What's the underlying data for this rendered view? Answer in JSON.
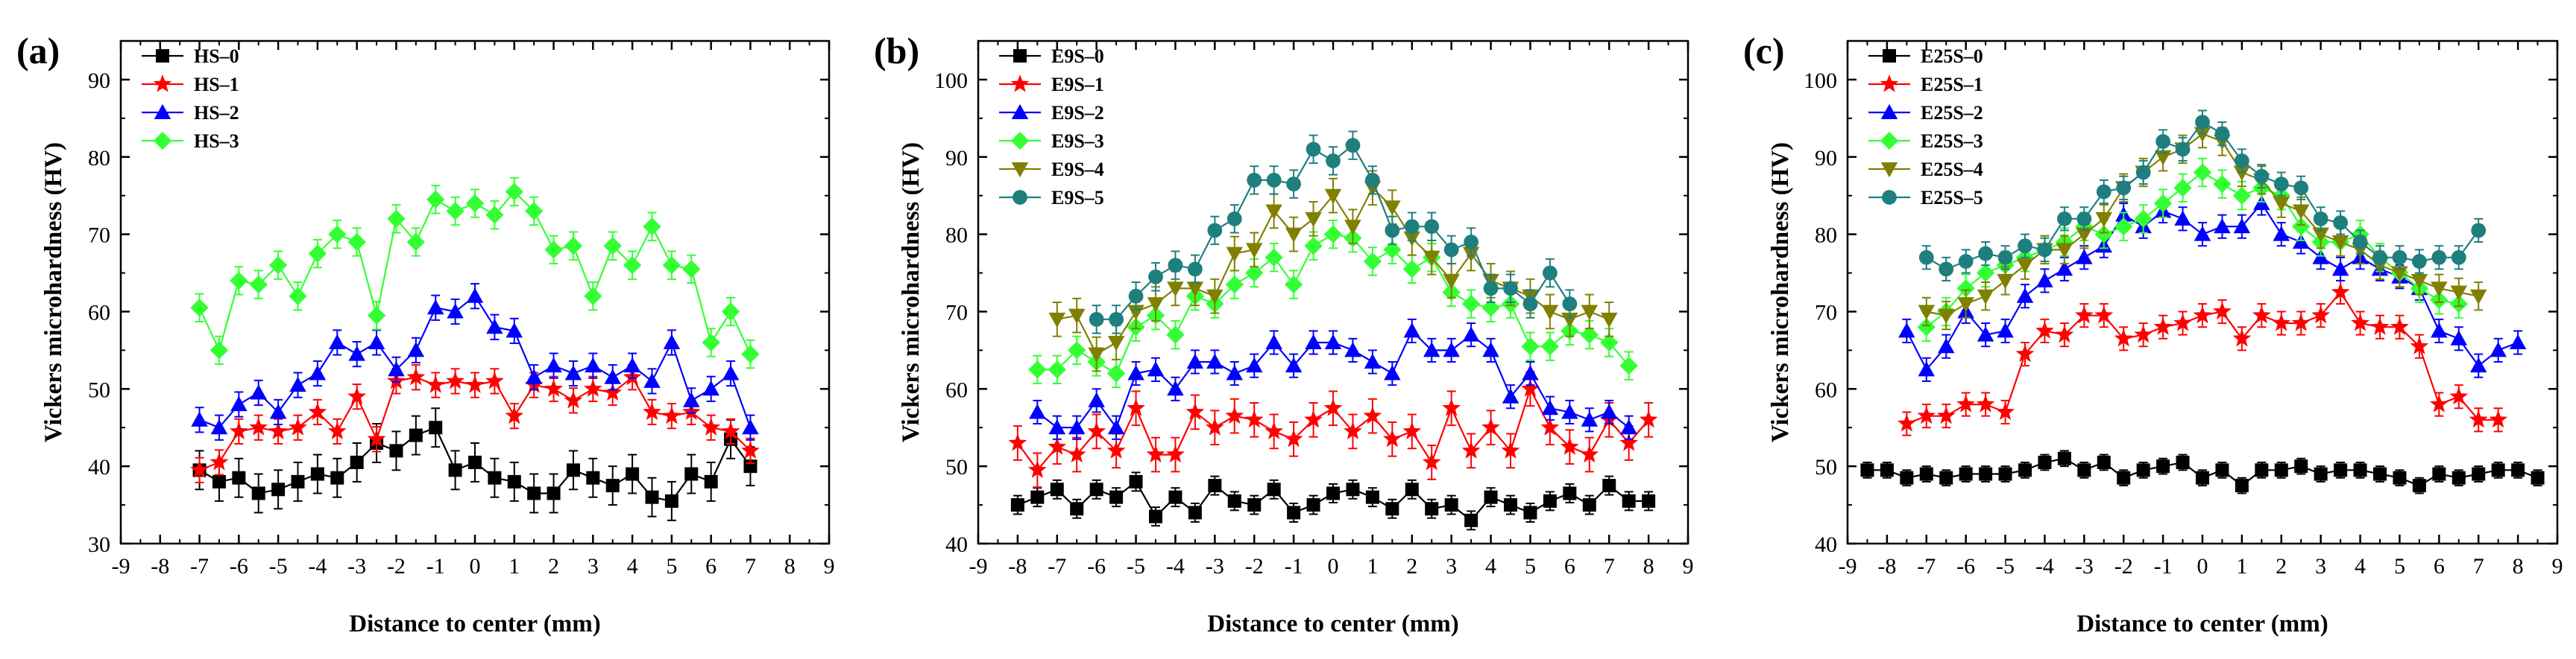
{
  "figure": {
    "panels": [
      "(a)",
      "(b)",
      "(c)"
    ],
    "colors": {
      "black": "#000000",
      "red": "#ff0000",
      "blue": "#0000ff",
      "green": "#33ff33",
      "olive": "#808000",
      "teal": "#1f7f7f"
    }
  },
  "chart_data": [
    {
      "type": "scatter",
      "panel": "(a)",
      "xlabel": "Distance to center (mm)",
      "ylabel": "Vickers microhardness (HV)",
      "xlim": [
        -9,
        9
      ],
      "ylim": [
        30,
        95
      ],
      "xticks": [
        -9,
        -8,
        -7,
        -6,
        -5,
        -4,
        -3,
        -2,
        -1,
        0,
        1,
        2,
        3,
        4,
        5,
        6,
        7,
        8,
        9
      ],
      "yticks": [
        30,
        40,
        50,
        60,
        70,
        80,
        90
      ],
      "legend_position": "top-left",
      "x": [
        -7,
        -6.5,
        -6,
        -5.5,
        -5,
        -4.5,
        -4,
        -3.5,
        -3,
        -2.5,
        -2,
        -1.5,
        -1,
        -0.5,
        0,
        0.5,
        1,
        1.5,
        2,
        2.5,
        3,
        3.5,
        4,
        4.5,
        5,
        5.5,
        6,
        6.5,
        7
      ],
      "series": [
        {
          "name": "HS–0",
          "color": "#000000",
          "marker": "square",
          "error": 2.5,
          "values": [
            39.5,
            38,
            38.5,
            36.5,
            37,
            38,
            39,
            38.5,
            40.5,
            43,
            42,
            44,
            45,
            39.5,
            40.5,
            38.5,
            38,
            36.5,
            36.5,
            39.5,
            38.5,
            37.5,
            39,
            36,
            35.5,
            39,
            38,
            43.5,
            40
          ]
        },
        {
          "name": "HS–1",
          "color": "#ff0000",
          "marker": "star",
          "error": 1.6,
          "values": [
            39.5,
            40.5,
            44.5,
            45,
            44.5,
            45,
            47,
            44.5,
            49,
            43.5,
            51,
            51.5,
            50.5,
            51,
            50.5,
            51,
            46.5,
            50.5,
            50,
            48.5,
            50,
            49.5,
            51.5,
            47,
            46.5,
            47,
            45,
            44.5,
            42
          ]
        },
        {
          "name": "HS–2",
          "color": "#0000ff",
          "marker": "triangle",
          "error": 1.6,
          "values": [
            46,
            45,
            48,
            49.5,
            47,
            50.5,
            52,
            56,
            54.5,
            56,
            52.5,
            55,
            60.5,
            60,
            62,
            58,
            57.5,
            51.5,
            53,
            52,
            53,
            51.5,
            53,
            51,
            56,
            48.5,
            50,
            52,
            45
          ]
        },
        {
          "name": "HS–3",
          "color": "#33ff33",
          "marker": "diamond",
          "error": 1.8,
          "values": [
            60.5,
            55,
            64,
            63.5,
            66,
            62,
            67.5,
            70,
            69,
            59.5,
            72,
            69,
            74.5,
            73,
            74,
            72.5,
            75.5,
            73,
            68,
            68.5,
            62,
            68.5,
            66,
            71,
            66,
            65.5,
            56,
            60,
            54.5
          ]
        }
      ]
    },
    {
      "type": "scatter",
      "panel": "(b)",
      "xlabel": "Distance to center (mm)",
      "ylabel": "Vickers microhardness (HV)",
      "xlim": [
        -9,
        9
      ],
      "ylim": [
        40,
        105
      ],
      "xticks": [
        -9,
        -8,
        -7,
        -6,
        -5,
        -4,
        -3,
        -2,
        -1,
        0,
        1,
        2,
        3,
        4,
        5,
        6,
        7,
        8,
        9
      ],
      "yticks": [
        40,
        50,
        60,
        70,
        80,
        90,
        100
      ],
      "legend_position": "top-left",
      "x": [
        -8,
        -7.5,
        -7,
        -6.5,
        -6,
        -5.5,
        -5,
        -4.5,
        -4,
        -3.5,
        -3,
        -2.5,
        -2,
        -1.5,
        -1,
        -0.5,
        0,
        0.5,
        1,
        1.5,
        2,
        2.5,
        3,
        3.5,
        4,
        4.5,
        5,
        5.5,
        6,
        6.5,
        7,
        7.5,
        8
      ],
      "series": [
        {
          "name": "E9S–0",
          "color": "#000000",
          "marker": "square",
          "error": 1.2,
          "values": [
            45,
            46,
            47,
            44.5,
            47,
            46,
            48,
            43.5,
            46,
            44,
            47.5,
            45.5,
            45,
            47,
            44,
            45,
            46.5,
            47,
            46,
            44.5,
            47,
            44.5,
            45,
            43,
            46,
            45,
            44,
            45.5,
            46.5,
            45,
            47.5,
            45.5,
            45.5
          ]
        },
        {
          "name": "E9S–1",
          "color": "#ff0000",
          "marker": "star",
          "error": 2.2,
          "values": [
            53,
            49.5,
            52.5,
            51.5,
            54.5,
            52,
            57.5,
            51.5,
            51.5,
            57,
            55,
            56.5,
            56,
            54.5,
            53.5,
            56,
            57.5,
            54.5,
            56.5,
            53.5,
            54.5,
            50.5,
            57.5,
            52,
            55,
            52,
            60,
            55,
            52.5,
            51.5,
            56,
            53,
            56
          ]
        },
        {
          "name": "E9S–2",
          "color": "#0000ff",
          "marker": "triangle",
          "error": 1.5,
          "values": [
            null,
            57,
            55,
            55,
            58.5,
            55,
            62,
            62.5,
            60,
            63.5,
            63.5,
            62,
            63,
            66,
            63,
            66,
            66,
            65,
            63.5,
            62,
            67.5,
            65,
            65,
            67,
            65,
            59,
            62,
            57.5,
            57,
            56,
            57,
            55,
            null
          ]
        },
        {
          "name": "E9S–3",
          "color": "#33ff33",
          "marker": "diamond",
          "error": 1.8,
          "values": [
            null,
            62.5,
            62.5,
            65,
            63.5,
            62,
            68,
            69.5,
            67,
            72,
            71,
            73.5,
            75,
            77,
            73.5,
            78.5,
            80,
            79.5,
            76.5,
            78,
            75.5,
            77,
            72.5,
            71,
            70.5,
            71,
            65.5,
            65.5,
            67.5,
            67,
            66,
            63,
            null
          ]
        },
        {
          "name": "E9S–4",
          "color": "#808000",
          "marker": "triangle-down",
          "error": 2.2,
          "values": [
            null,
            null,
            69,
            69.5,
            64.5,
            66,
            70,
            71,
            73,
            73,
            72,
            77.5,
            78,
            83,
            80,
            82,
            85,
            81,
            86,
            83.5,
            79.5,
            77,
            74,
            77.5,
            74,
            73,
            72,
            70,
            69,
            70,
            69,
            null,
            null
          ]
        },
        {
          "name": "E9S–5",
          "color": "#1f7f7f",
          "marker": "circle",
          "error": 1.8,
          "values": [
            null,
            null,
            null,
            null,
            69,
            69,
            72,
            74.5,
            76,
            75.5,
            80.5,
            82,
            87,
            87,
            86.5,
            91,
            89.5,
            91.5,
            87,
            80.5,
            81,
            81,
            78,
            79,
            73,
            73,
            71,
            75,
            71,
            null,
            null,
            null,
            null
          ]
        }
      ]
    },
    {
      "type": "scatter",
      "panel": "(c)",
      "xlabel": "Distance to center (mm)",
      "ylabel": "Vickers microhardness (HV)",
      "xlim": [
        -9,
        9
      ],
      "ylim": [
        40,
        105
      ],
      "xticks": [
        -9,
        -8,
        -7,
        -6,
        -5,
        -4,
        -3,
        -2,
        -1,
        0,
        1,
        2,
        3,
        4,
        5,
        6,
        7,
        8,
        9
      ],
      "yticks": [
        40,
        50,
        60,
        70,
        80,
        90,
        100
      ],
      "legend_position": "top-left",
      "x": [
        -8.5,
        -8,
        -7.5,
        -7,
        -6.5,
        -6,
        -5.5,
        -5,
        -4.5,
        -4,
        -3.5,
        -3,
        -2.5,
        -2,
        -1.5,
        -1,
        -0.5,
        0,
        0.5,
        1,
        1.5,
        2,
        2.5,
        3,
        3.5,
        4,
        4.5,
        5,
        5.5,
        6,
        6.5,
        7,
        7.5,
        8,
        8.5
      ],
      "series": [
        {
          "name": "E25S–0",
          "color": "#000000",
          "marker": "square",
          "error": 1.0,
          "values": [
            49.5,
            49.5,
            48.5,
            49,
            48.5,
            49,
            49,
            49,
            49.5,
            50.5,
            51,
            49.5,
            50.5,
            48.5,
            49.5,
            50,
            50.5,
            48.5,
            49.5,
            47.5,
            49.5,
            49.5,
            50,
            49,
            49.5,
            49.5,
            49,
            48.5,
            47.5,
            49,
            48.5,
            49,
            49.5,
            49.5,
            48.5
          ]
        },
        {
          "name": "E25S–1",
          "color": "#ff0000",
          "marker": "star",
          "error": 1.5,
          "values": [
            null,
            null,
            55.5,
            56.5,
            56.5,
            58,
            58,
            57,
            64.5,
            67.5,
            67,
            69.5,
            69.5,
            66.5,
            67,
            68,
            68.5,
            69.5,
            70,
            66.5,
            69.5,
            68.5,
            68.5,
            69.5,
            72.5,
            68.5,
            68,
            68,
            65.5,
            58,
            59,
            56,
            56,
            null,
            null
          ]
        },
        {
          "name": "E25S–2",
          "color": "#0000ff",
          "marker": "triangle",
          "error": 1.5,
          "values": [
            null,
            null,
            67.5,
            62.5,
            65.5,
            70,
            67,
            67.5,
            72,
            74,
            75.5,
            77,
            78.5,
            82.5,
            81,
            83,
            82,
            80,
            81,
            81,
            84,
            80,
            79,
            77,
            75.5,
            77,
            75.5,
            74.5,
            73,
            67.5,
            66.5,
            63,
            65,
            66,
            null
          ]
        },
        {
          "name": "E25S–3",
          "color": "#33ff33",
          "marker": "diamond",
          "error": 1.8,
          "values": [
            null,
            null,
            null,
            68,
            70,
            73,
            75,
            76,
            77,
            78,
            79,
            81,
            80,
            81,
            82,
            84,
            86,
            88,
            86.5,
            85,
            86,
            85,
            81,
            79,
            79,
            80,
            77,
            75,
            73,
            71.5,
            71,
            null,
            null,
            null,
            null
          ]
        },
        {
          "name": "E25S–4",
          "color": "#808000",
          "marker": "triangle-down",
          "error": 1.8,
          "values": [
            null,
            null,
            null,
            70,
            69.5,
            71,
            72,
            74,
            76,
            78,
            78,
            80,
            82,
            86,
            88,
            90,
            91,
            93,
            92,
            88,
            87,
            84,
            83,
            80,
            79,
            78,
            76,
            75,
            74,
            73,
            72.5,
            72,
            null,
            null,
            null
          ]
        },
        {
          "name": "E25S–5",
          "color": "#1f7f7f",
          "marker": "circle",
          "error": 1.5,
          "values": [
            null,
            null,
            null,
            77,
            75.5,
            76.5,
            77.5,
            77,
            78.5,
            78,
            82,
            82,
            85.5,
            86,
            88,
            92,
            91,
            94.5,
            93,
            89.5,
            87.5,
            86.5,
            86,
            82,
            81.5,
            79,
            77,
            77,
            76.5,
            77,
            77,
            80.5,
            null,
            null,
            null
          ]
        }
      ]
    }
  ]
}
